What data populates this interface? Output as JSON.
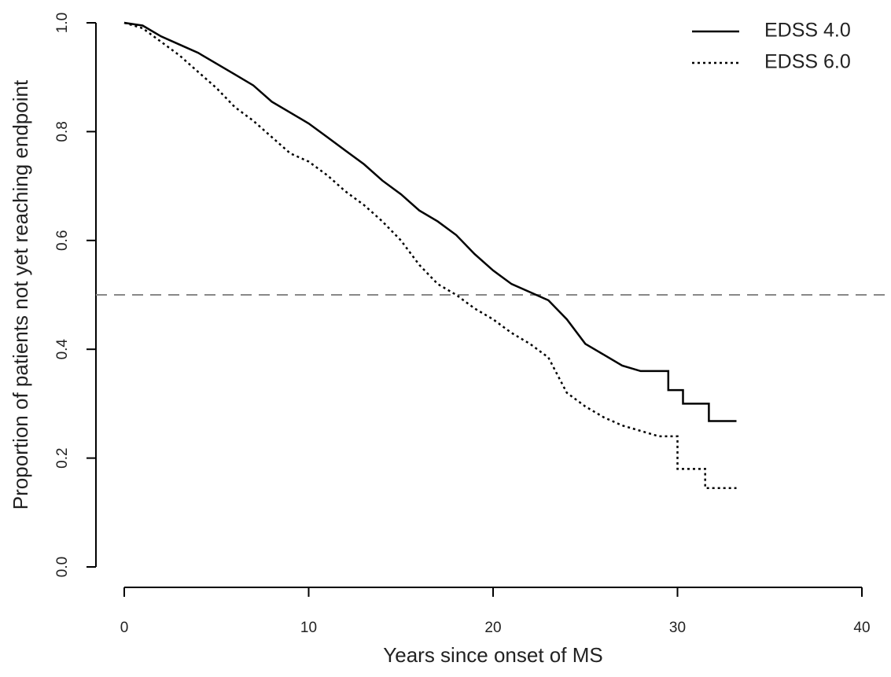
{
  "chart_data": {
    "type": "line",
    "xlabel": "Years since onset of MS",
    "ylabel": "Proportion of patients not yet reaching endpoint",
    "xlim": [
      0,
      40
    ],
    "xticks": [
      0,
      10,
      20,
      30,
      40
    ],
    "ylim": [
      0,
      1
    ],
    "yticks": [
      {
        "value": 0,
        "label": "0.0"
      },
      {
        "value": 0.2,
        "label": "0.2"
      },
      {
        "value": 0.4,
        "label": "0.4"
      },
      {
        "value": 0.6,
        "label": "0.6"
      },
      {
        "value": 0.8,
        "label": "0.8"
      },
      {
        "value": 1,
        "label": "1.0"
      }
    ],
    "hline": 0.5,
    "legend": "top-right",
    "series": [
      {
        "name": "EDSS 4.0",
        "color": "#000000",
        "dash": "none",
        "x": [
          0,
          1,
          2,
          3,
          4,
          5,
          6,
          7,
          8,
          9,
          10,
          11,
          12,
          13,
          14,
          15,
          16,
          17,
          18,
          19,
          20,
          21,
          22,
          23,
          24,
          25,
          26,
          27,
          28,
          29.5,
          29.5,
          30.3,
          30.3,
          31.7,
          31.7,
          33.2
        ],
        "values": [
          1.0,
          0.995,
          0.975,
          0.96,
          0.945,
          0.925,
          0.905,
          0.885,
          0.855,
          0.835,
          0.815,
          0.79,
          0.765,
          0.74,
          0.71,
          0.685,
          0.655,
          0.635,
          0.61,
          0.575,
          0.545,
          0.52,
          0.505,
          0.49,
          0.455,
          0.41,
          0.39,
          0.37,
          0.36,
          0.36,
          0.325,
          0.325,
          0.3,
          0.3,
          0.268,
          0.268
        ]
      },
      {
        "name": "EDSS 6.0",
        "color": "#000000",
        "dash": "3,4",
        "x": [
          0,
          1,
          2,
          3,
          4,
          5,
          6,
          7,
          8,
          9,
          10,
          11,
          12,
          13,
          14,
          15,
          16,
          17,
          18,
          19,
          20,
          21,
          22,
          23,
          24,
          25,
          26,
          27,
          28,
          29,
          30,
          30,
          31.5,
          31.5,
          33.2
        ],
        "values": [
          1.0,
          0.99,
          0.965,
          0.94,
          0.91,
          0.88,
          0.845,
          0.82,
          0.79,
          0.76,
          0.745,
          0.72,
          0.69,
          0.665,
          0.635,
          0.6,
          0.555,
          0.52,
          0.5,
          0.475,
          0.455,
          0.43,
          0.41,
          0.385,
          0.32,
          0.295,
          0.275,
          0.26,
          0.25,
          0.24,
          0.24,
          0.18,
          0.18,
          0.145,
          0.145
        ]
      }
    ]
  }
}
